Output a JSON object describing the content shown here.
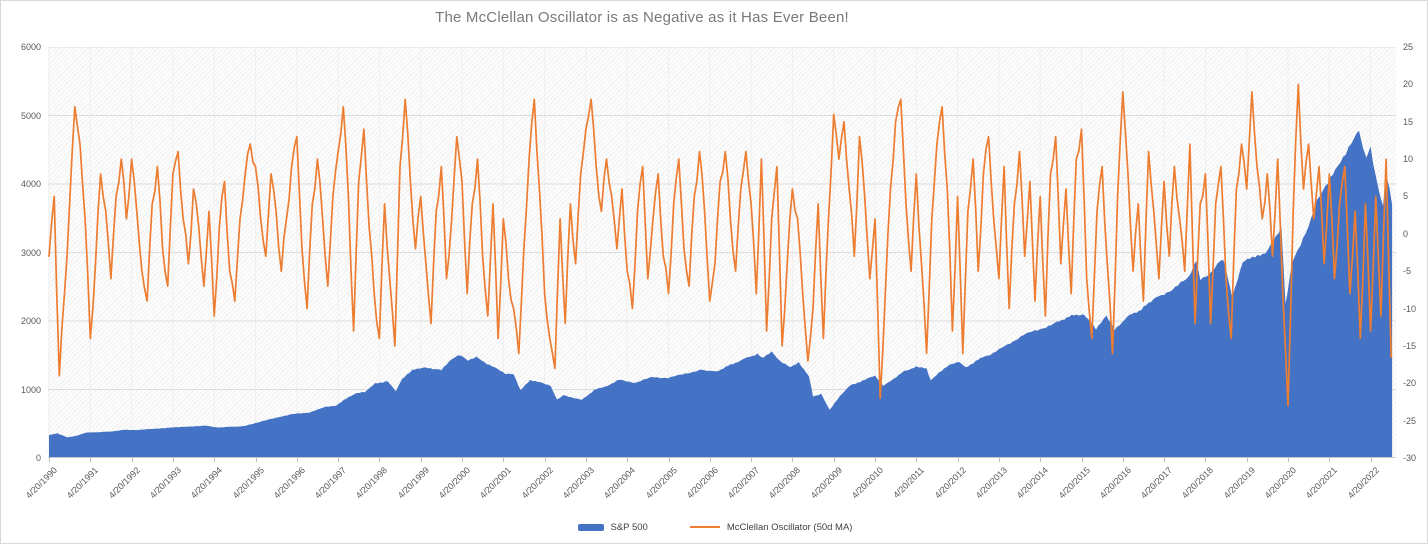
{
  "title": "The McClellan Oscillator is as Negative as it Has Ever Been!",
  "colors": {
    "sp500_area": "#4472C4",
    "oscillator_line": "#ED7D31",
    "gridline": "#dddddd",
    "year_gridline": "#efefef",
    "axis_line": "#c9c9c9",
    "tick": "#bfbfbf",
    "axis_text": "#595959",
    "title_text": "#7a7a7a"
  },
  "chart_data": {
    "type": "combo",
    "title": "The McClellan Oscillator is as Negative as it Has Ever Been!",
    "grid": "horizontal-and-faint-vertical",
    "legend_position": "bottom-center",
    "left_axis": {
      "min": 0,
      "max": 6000,
      "step": 1000,
      "tick_labels": [
        "0",
        "1000",
        "2000",
        "3000",
        "4000",
        "5000",
        "6000"
      ]
    },
    "right_axis": {
      "min": -30,
      "max": 25,
      "step": 5,
      "tick_labels_top_down": [
        "25",
        "20",
        "15",
        "10",
        "5",
        "0",
        "-5",
        "-10",
        "-15",
        "-20",
        "-25",
        "-30"
      ]
    },
    "x_axis": {
      "labels": [
        "4/20/1990",
        "4/20/1991",
        "4/20/1992",
        "4/20/1993",
        "4/20/1994",
        "4/20/1995",
        "4/20/1996",
        "4/20/1997",
        "4/20/1998",
        "4/20/1999",
        "4/20/2000",
        "4/20/2001",
        "4/20/2002",
        "4/20/2003",
        "4/20/2004",
        "4/20/2005",
        "4/20/2006",
        "4/20/2007",
        "4/20/2008",
        "4/20/2009",
        "4/20/2010",
        "4/20/2011",
        "4/20/2012",
        "4/20/2013",
        "4/20/2014",
        "4/20/2015",
        "4/20/2016",
        "4/20/2017",
        "4/20/2018",
        "4/20/2019",
        "4/20/2020",
        "4/20/2021",
        "4/20/2022"
      ],
      "label_rotation_deg": -45,
      "first_year_decimal": 1990.3,
      "years_per_label": 1
    },
    "series": [
      {
        "name": "S&P 500",
        "type": "area",
        "axis": "left",
        "color": "#4472C4",
        "points": [
          [
            1990.3,
            335
          ],
          [
            1990.5,
            358
          ],
          [
            1990.75,
            300
          ],
          [
            1990.95,
            320
          ],
          [
            1991.2,
            370
          ],
          [
            1991.5,
            378
          ],
          [
            1991.8,
            385
          ],
          [
            1992.1,
            412
          ],
          [
            1992.5,
            410
          ],
          [
            1992.9,
            430
          ],
          [
            1993.3,
            445
          ],
          [
            1993.7,
            460
          ],
          [
            1994.1,
            470
          ],
          [
            1994.35,
            445
          ],
          [
            1994.7,
            455
          ],
          [
            1995.0,
            465
          ],
          [
            1995.4,
            525
          ],
          [
            1995.8,
            590
          ],
          [
            1996.2,
            640
          ],
          [
            1996.6,
            665
          ],
          [
            1997.0,
            745
          ],
          [
            1997.25,
            760
          ],
          [
            1997.5,
            870
          ],
          [
            1997.75,
            950
          ],
          [
            1997.95,
            960
          ],
          [
            1998.2,
            1090
          ],
          [
            1998.5,
            1120
          ],
          [
            1998.7,
            980
          ],
          [
            1998.85,
            1150
          ],
          [
            1999.1,
            1280
          ],
          [
            1999.4,
            1330
          ],
          [
            1999.6,
            1300
          ],
          [
            1999.8,
            1280
          ],
          [
            2000.05,
            1440
          ],
          [
            2000.25,
            1500
          ],
          [
            2000.45,
            1430
          ],
          [
            2000.65,
            1480
          ],
          [
            2000.9,
            1380
          ],
          [
            2001.1,
            1320
          ],
          [
            2001.35,
            1230
          ],
          [
            2001.55,
            1220
          ],
          [
            2001.72,
            990
          ],
          [
            2001.95,
            1140
          ],
          [
            2002.2,
            1110
          ],
          [
            2002.45,
            1050
          ],
          [
            2002.6,
            850
          ],
          [
            2002.75,
            920
          ],
          [
            2002.95,
            880
          ],
          [
            2003.2,
            850
          ],
          [
            2003.5,
            990
          ],
          [
            2003.8,
            1050
          ],
          [
            2004.1,
            1140
          ],
          [
            2004.5,
            1100
          ],
          [
            2004.9,
            1180
          ],
          [
            2005.3,
            1170
          ],
          [
            2005.7,
            1230
          ],
          [
            2006.1,
            1290
          ],
          [
            2006.45,
            1260
          ],
          [
            2006.8,
            1360
          ],
          [
            2007.1,
            1440
          ],
          [
            2007.45,
            1520
          ],
          [
            2007.6,
            1460
          ],
          [
            2007.8,
            1550
          ],
          [
            2008.0,
            1420
          ],
          [
            2008.25,
            1330
          ],
          [
            2008.45,
            1400
          ],
          [
            2008.7,
            1200
          ],
          [
            2008.8,
            900
          ],
          [
            2009.0,
            930
          ],
          [
            2009.2,
            700
          ],
          [
            2009.45,
            900
          ],
          [
            2009.7,
            1060
          ],
          [
            2010.0,
            1130
          ],
          [
            2010.3,
            1200
          ],
          [
            2010.5,
            1050
          ],
          [
            2010.75,
            1150
          ],
          [
            2011.0,
            1270
          ],
          [
            2011.3,
            1330
          ],
          [
            2011.55,
            1300
          ],
          [
            2011.65,
            1130
          ],
          [
            2011.85,
            1250
          ],
          [
            2012.1,
            1360
          ],
          [
            2012.35,
            1400
          ],
          [
            2012.5,
            1320
          ],
          [
            2012.8,
            1440
          ],
          [
            2013.1,
            1510
          ],
          [
            2013.5,
            1650
          ],
          [
            2013.9,
            1800
          ],
          [
            2014.3,
            1880
          ],
          [
            2014.7,
            1980
          ],
          [
            2015.0,
            2070
          ],
          [
            2015.35,
            2100
          ],
          [
            2015.65,
            1880
          ],
          [
            2015.9,
            2090
          ],
          [
            2016.1,
            1870
          ],
          [
            2016.4,
            2060
          ],
          [
            2016.75,
            2170
          ],
          [
            2017.1,
            2350
          ],
          [
            2017.5,
            2450
          ],
          [
            2017.9,
            2650
          ],
          [
            2018.08,
            2870
          ],
          [
            2018.18,
            2600
          ],
          [
            2018.45,
            2720
          ],
          [
            2018.73,
            2920
          ],
          [
            2018.95,
            2350
          ],
          [
            2019.2,
            2850
          ],
          [
            2019.5,
            2950
          ],
          [
            2019.75,
            3000
          ],
          [
            2020.0,
            3230
          ],
          [
            2020.14,
            3380
          ],
          [
            2020.24,
            2240
          ],
          [
            2020.4,
            2850
          ],
          [
            2020.6,
            3100
          ],
          [
            2020.8,
            3400
          ],
          [
            2021.0,
            3760
          ],
          [
            2021.2,
            3940
          ],
          [
            2021.45,
            4200
          ],
          [
            2021.7,
            4450
          ],
          [
            2021.9,
            4650
          ],
          [
            2022.02,
            4790
          ],
          [
            2022.12,
            4500
          ],
          [
            2022.2,
            4380
          ],
          [
            2022.3,
            4550
          ],
          [
            2022.42,
            4120
          ],
          [
            2022.5,
            3900
          ],
          [
            2022.6,
            3680
          ],
          [
            2022.68,
            4150
          ],
          [
            2022.75,
            3950
          ],
          [
            2022.82,
            3700
          ]
        ]
      },
      {
        "name": "McClellan Oscillator (50d MA)",
        "type": "line",
        "axis": "right",
        "color": "#ED7D31",
        "x_start": 1990.3,
        "x_step": 0.125,
        "values": [
          -3,
          5,
          -19,
          -8,
          4,
          17,
          12,
          2,
          -14,
          -4,
          8,
          3,
          -6,
          5,
          10,
          2,
          10,
          3,
          -5,
          -9,
          4,
          9,
          -2,
          -7,
          8,
          11,
          2,
          -4,
          6,
          1,
          -7,
          3,
          -11,
          1,
          7,
          -5,
          -9,
          2,
          8,
          12,
          9,
          2,
          -3,
          8,
          3,
          -5,
          2,
          9,
          13,
          -2,
          -10,
          4,
          10,
          2,
          -7,
          5,
          11,
          17,
          5,
          -13,
          7,
          14,
          1,
          -8,
          -14,
          4,
          -6,
          -15,
          9,
          18,
          7,
          -2,
          5,
          -4,
          -12,
          3,
          9,
          -6,
          2,
          13,
          7,
          -8,
          4,
          10,
          -3,
          -11,
          4,
          -14,
          2,
          -6,
          -10,
          -16,
          -2,
          10,
          18,
          6,
          -8,
          -14,
          -18,
          2,
          -12,
          4,
          -4,
          8,
          14,
          18,
          9,
          3,
          10,
          5,
          -2,
          6,
          -5,
          -10,
          3,
          9,
          -6,
          2,
          8,
          -3,
          -8,
          4,
          10,
          -2,
          -7,
          5,
          11,
          3,
          -9,
          -4,
          7,
          11,
          2,
          -5,
          6,
          11,
          4,
          -8,
          10,
          -13,
          2,
          9,
          -15,
          -4,
          6,
          2,
          -8,
          -17,
          -10,
          4,
          -14,
          2,
          16,
          10,
          15,
          6,
          -3,
          13,
          5,
          -6,
          2,
          -22,
          -8,
          6,
          15,
          18,
          4,
          -5,
          8,
          -4,
          -16,
          2,
          12,
          17,
          6,
          -13,
          5,
          -16,
          3,
          10,
          -5,
          8,
          13,
          2,
          -6,
          9,
          -10,
          4,
          11,
          -3,
          7,
          -9,
          5,
          -11,
          8,
          13,
          -4,
          6,
          -8,
          10,
          14,
          -6,
          -14,
          3,
          9,
          -4,
          -16,
          5,
          19,
          8,
          -5,
          4,
          -9,
          11,
          3,
          -6,
          7,
          -3,
          9,
          2,
          -5,
          12,
          -12,
          4,
          8,
          -12,
          4,
          9,
          -6,
          -14,
          6,
          12,
          6,
          19,
          9,
          2,
          8,
          -3,
          10,
          -8,
          -23,
          3,
          20,
          6,
          12,
          2,
          9,
          -4,
          8,
          -6,
          4,
          9,
          -8,
          3,
          -14,
          4,
          -13,
          5,
          -11,
          10,
          -16.5
        ]
      }
    ]
  }
}
